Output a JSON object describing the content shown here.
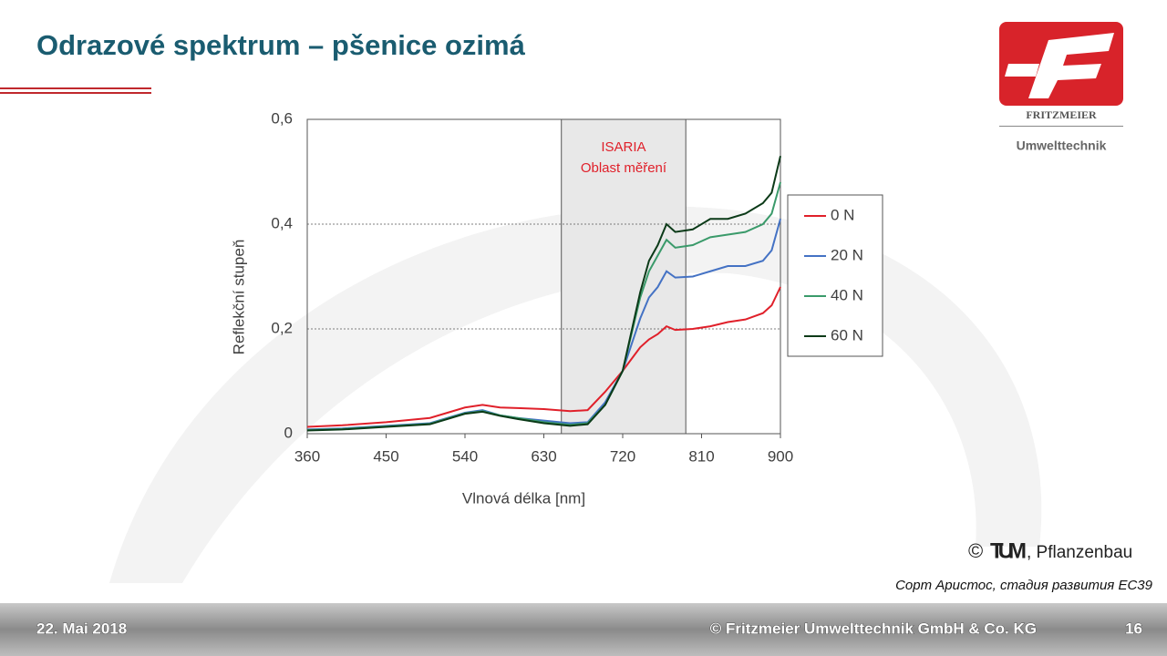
{
  "slide": {
    "title": "Odrazové spektrum – pšenice ozimá"
  },
  "logo": {
    "name": "FRITZMEIER",
    "sub": "Umwelttechnik"
  },
  "credit": {
    "copyright": "©",
    "org": "TUM",
    "dept": ", Pflanzenbau",
    "note": "Сорт Аристос, стадия развития EC39"
  },
  "footer": {
    "date": "22. Mai 2018",
    "company": "© Fritzmeier Umwelttechnik GmbH & Co. KG",
    "page": "16"
  },
  "chart_data": {
    "type": "line",
    "x_label": "Vlnová délka [nm]",
    "y_label": "Reflekční stupeň",
    "x": [
      360,
      400,
      450,
      500,
      520,
      540,
      560,
      580,
      600,
      630,
      660,
      680,
      700,
      720,
      740,
      750,
      760,
      770,
      780,
      800,
      820,
      840,
      860,
      880,
      890,
      900
    ],
    "series": [
      {
        "name": "0 N",
        "color": "#e0202a",
        "values": [
          0.013,
          0.016,
          0.022,
          0.03,
          0.04,
          0.05,
          0.055,
          0.05,
          0.049,
          0.047,
          0.043,
          0.045,
          0.08,
          0.12,
          0.165,
          0.18,
          0.19,
          0.205,
          0.198,
          0.2,
          0.205,
          0.213,
          0.218,
          0.23,
          0.245,
          0.28
        ]
      },
      {
        "name": "20 N",
        "color": "#4472c4",
        "values": [
          0.008,
          0.01,
          0.015,
          0.02,
          0.03,
          0.04,
          0.045,
          0.035,
          0.03,
          0.025,
          0.02,
          0.022,
          0.06,
          0.12,
          0.22,
          0.26,
          0.28,
          0.31,
          0.298,
          0.3,
          0.31,
          0.32,
          0.32,
          0.33,
          0.35,
          0.41
        ]
      },
      {
        "name": "40 N",
        "color": "#3a9a6a",
        "values": [
          0.007,
          0.009,
          0.014,
          0.019,
          0.029,
          0.039,
          0.043,
          0.035,
          0.03,
          0.022,
          0.017,
          0.02,
          0.055,
          0.12,
          0.26,
          0.31,
          0.34,
          0.37,
          0.355,
          0.36,
          0.375,
          0.38,
          0.385,
          0.4,
          0.42,
          0.48
        ]
      },
      {
        "name": "60 N",
        "color": "#0b3a18",
        "values": [
          0.006,
          0.008,
          0.013,
          0.018,
          0.028,
          0.038,
          0.042,
          0.034,
          0.028,
          0.02,
          0.015,
          0.018,
          0.055,
          0.12,
          0.27,
          0.33,
          0.36,
          0.4,
          0.385,
          0.39,
          0.41,
          0.41,
          0.42,
          0.44,
          0.46,
          0.53
        ]
      }
    ],
    "xlim": [
      360,
      900
    ],
    "xticks": [
      360,
      450,
      540,
      630,
      720,
      810,
      900
    ],
    "ylim": [
      0,
      0.6
    ],
    "yticks": [
      0,
      {
        "value": 0.2,
        "label": "0,2"
      },
      {
        "value": 0.4,
        "label": "0,4"
      },
      {
        "value": 0.6,
        "label": "0,6"
      }
    ],
    "grid": true,
    "legend": "right",
    "highlight": {
      "xrange": [
        650,
        792
      ],
      "color": "#e8e8e8",
      "label_color": "#e0202a",
      "lines": [
        "ISARIA",
        "Oblast měření"
      ]
    }
  }
}
